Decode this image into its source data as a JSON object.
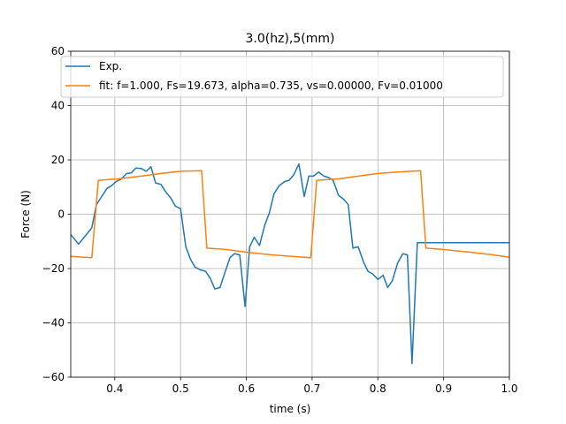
{
  "chart_data": {
    "type": "line",
    "title": "3.0(hz),5(mm)",
    "xlabel": "time (s)",
    "ylabel": "Force (N)",
    "xlim": [
      0.333,
      1.0
    ],
    "ylim": [
      -60,
      60
    ],
    "xticks": [
      0.4,
      0.5,
      0.6,
      0.7,
      0.8,
      0.9,
      1.0
    ],
    "xtick_labels": [
      "0.4",
      "0.5",
      "0.6",
      "0.7",
      "0.8",
      "0.9",
      "1.0"
    ],
    "yticks": [
      -60,
      -40,
      -20,
      0,
      20,
      40,
      60
    ],
    "ytick_labels": [
      "−60",
      "−40",
      "−20",
      "0",
      "20",
      "40",
      "60"
    ],
    "grid": true,
    "legend_position": "top-left",
    "series": [
      {
        "name": "Exp.",
        "color": "#1f77b4",
        "x": [
          0.333,
          0.345,
          0.355,
          0.365,
          0.372,
          0.38,
          0.388,
          0.395,
          0.402,
          0.41,
          0.418,
          0.425,
          0.432,
          0.44,
          0.448,
          0.455,
          0.462,
          0.47,
          0.478,
          0.485,
          0.492,
          0.5,
          0.508,
          0.515,
          0.522,
          0.53,
          0.538,
          0.545,
          0.552,
          0.56,
          0.568,
          0.575,
          0.582,
          0.59,
          0.598,
          0.605,
          0.612,
          0.62,
          0.628,
          0.635,
          0.642,
          0.65,
          0.658,
          0.665,
          0.672,
          0.68,
          0.688,
          0.695,
          0.702,
          0.71,
          0.718,
          0.725,
          0.732,
          0.74,
          0.748,
          0.755,
          0.762,
          0.77,
          0.778,
          0.785,
          0.792,
          0.8,
          0.808,
          0.815,
          0.822,
          0.83,
          0.838,
          0.845,
          0.852,
          0.86,
          0.868,
          0.875,
          0.882,
          0.89,
          0.898,
          0.905,
          0.912,
          0.92,
          0.928,
          0.935,
          0.942,
          0.95,
          0.958,
          0.965,
          0.972,
          0.98,
          0.988,
          0.995,
          1.0
        ],
        "y": [
          -7.5,
          -11.0,
          -8.0,
          -5.0,
          3.5,
          6.5,
          9.5,
          10.5,
          12.0,
          13.0,
          15.0,
          15.2,
          17.0,
          16.8,
          15.8,
          17.5,
          11.5,
          11.0,
          8.0,
          6.0,
          3.0,
          2.0,
          -12.0,
          -16.5,
          -19.5,
          -20.5,
          -21.0,
          -23.5,
          -27.5,
          -27.0,
          -21.0,
          -16.0,
          -14.5,
          -15.0,
          -34.0,
          -12.0,
          -8.5,
          -11.5,
          -4.0,
          0.5,
          7.5,
          10.5,
          12.0,
          12.5,
          14.5,
          18.5,
          6.5,
          14.0,
          14.0,
          15.5,
          14.0,
          13.5,
          12.5,
          7.0,
          5.5,
          3.5,
          -12.5,
          -12.0,
          -17.5,
          -21.0,
          -22.0,
          -24.0,
          -22.5,
          -27.0,
          -24.5,
          -18.0,
          -14.5,
          -15.0,
          -55.0,
          -10.5,
          -10.5,
          -10.5,
          -10.5,
          -10.5,
          -10.5,
          -10.5,
          -10.5,
          -10.5,
          -10.5,
          -10.5,
          -10.5,
          -10.5,
          -10.5,
          -10.5,
          -10.5,
          -10.5,
          -10.5,
          -10.5,
          -10.5
        ]
      },
      {
        "name": "fit: f=1.000, Fs=19.673, alpha=0.735, vs=0.00000, Fv=0.01000",
        "color": "#ff7f0e",
        "x": [
          0.333,
          0.365,
          0.375,
          0.405,
          0.44,
          0.47,
          0.5,
          0.532,
          0.54,
          0.57,
          0.6,
          0.64,
          0.67,
          0.698,
          0.707,
          0.74,
          0.77,
          0.8,
          0.83,
          0.865,
          0.873,
          0.9,
          0.94,
          0.97,
          1.0
        ],
        "y": [
          -15.5,
          -16.0,
          12.5,
          13.0,
          14.0,
          15.0,
          15.8,
          16.0,
          -12.5,
          -13.0,
          -14.0,
          -15.0,
          -15.5,
          -16.0,
          12.5,
          13.0,
          14.0,
          15.0,
          15.5,
          16.0,
          -12.5,
          -13.0,
          -14.0,
          -14.8,
          -15.8
        ]
      }
    ]
  }
}
